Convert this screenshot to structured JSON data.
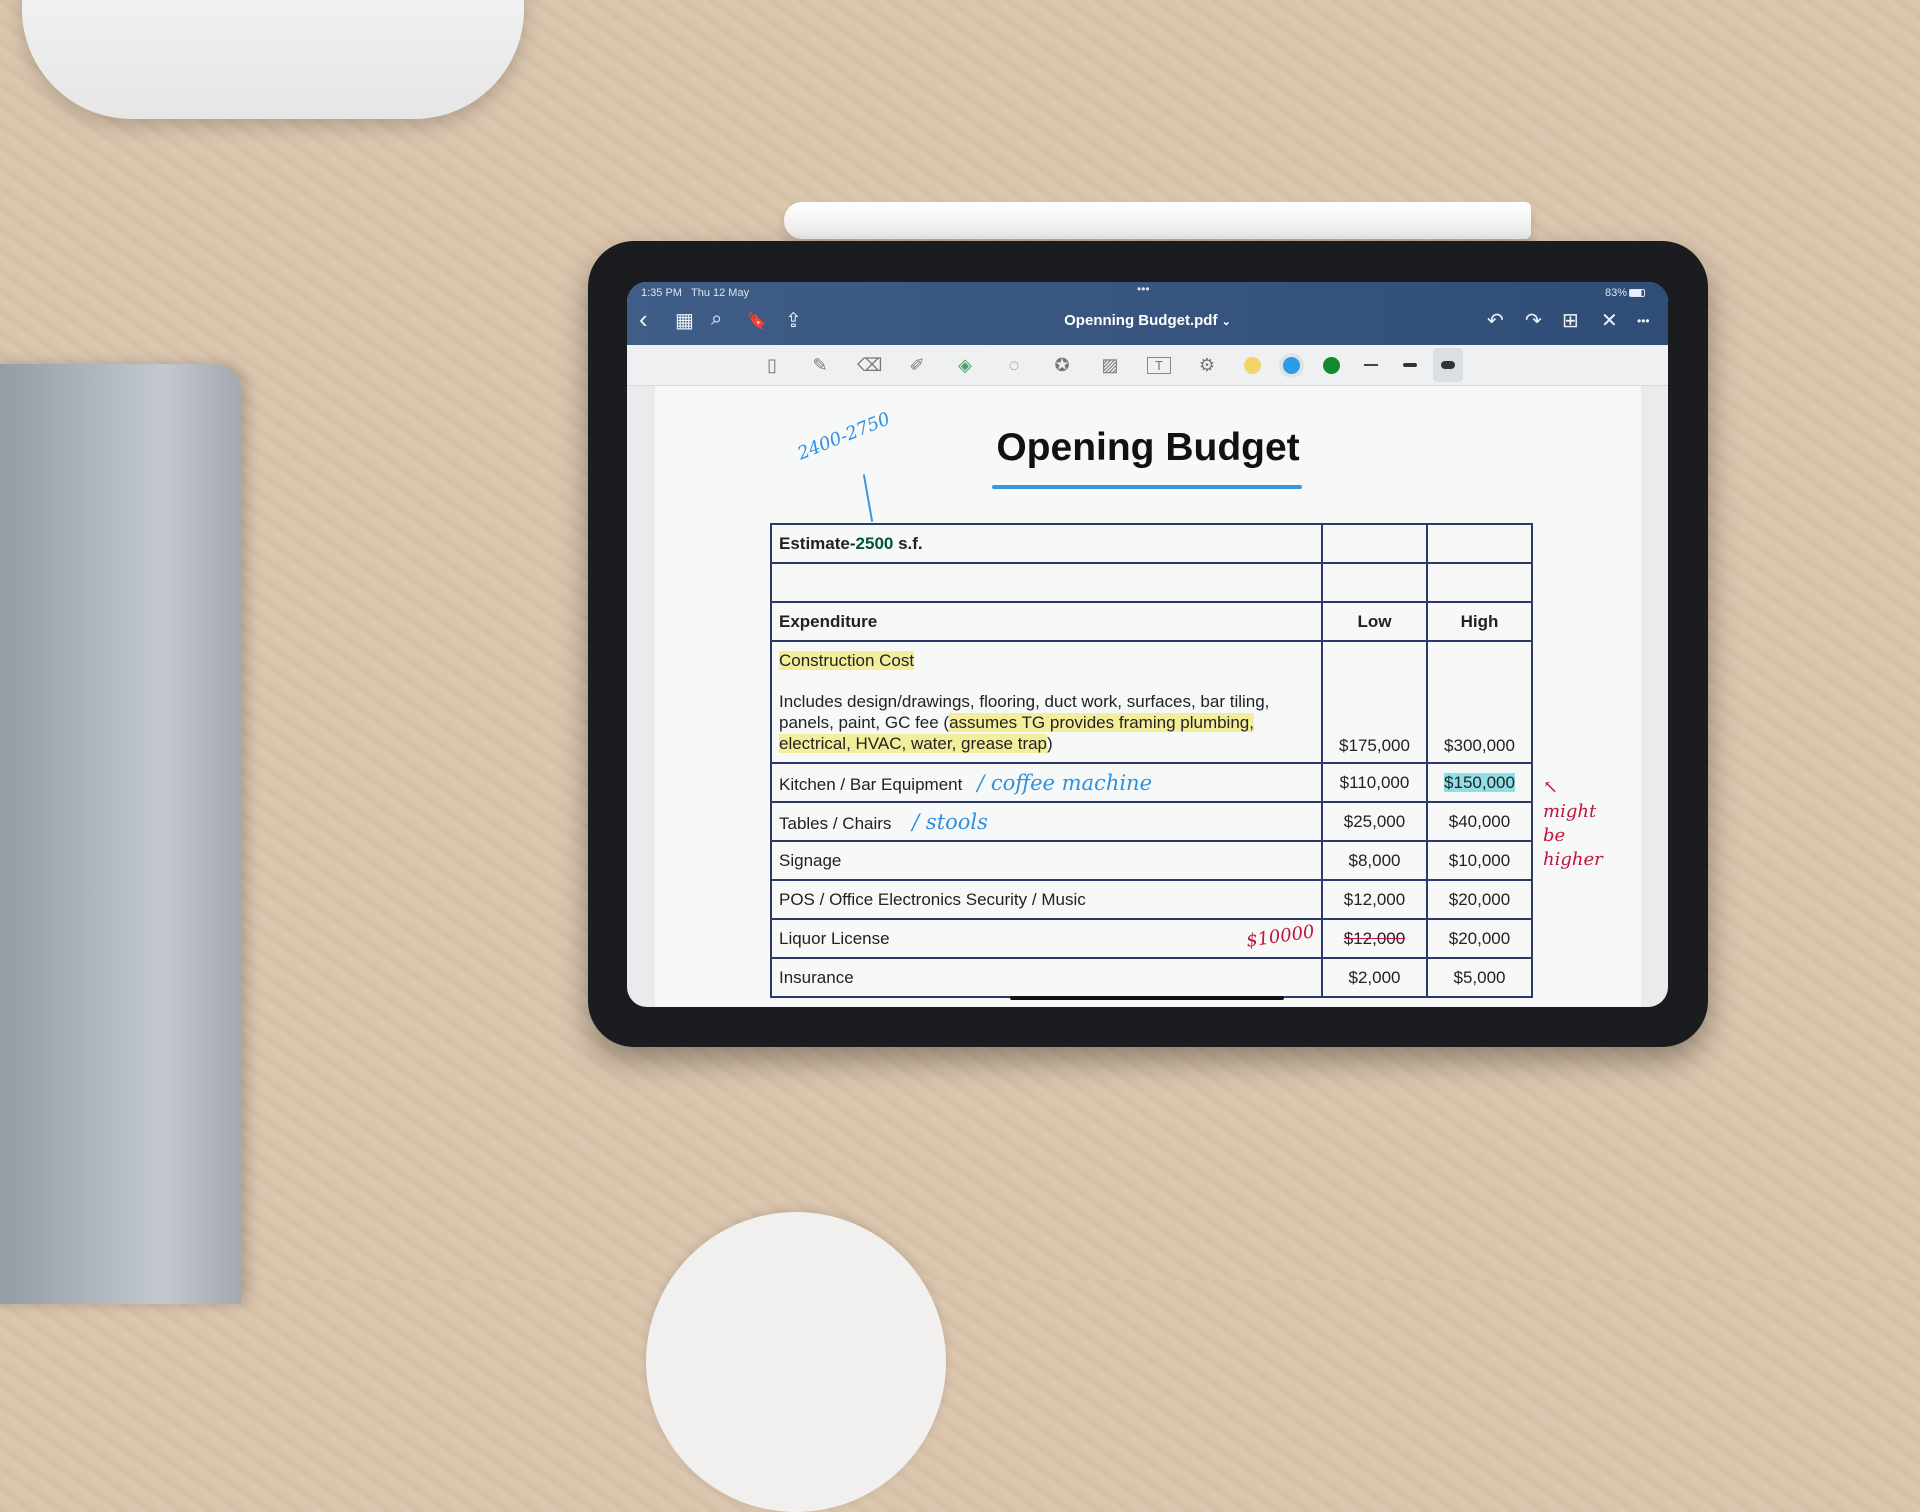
{
  "status_bar": {
    "time": "1:35 PM",
    "date": "Thu 12 May",
    "wifi": "wifi-icon",
    "battery": "83%",
    "multitask": "•••"
  },
  "nav": {
    "title": "Openning Budget.pdf",
    "title_chevron": "⌄",
    "back": "‹",
    "grid": "▦",
    "search": "⌕",
    "bookmark": "🔖",
    "share": "⇪",
    "undo": "↶",
    "redo": "↷",
    "add_page": "⊞",
    "close": "✕",
    "more": "•••"
  },
  "tools": [
    "▯",
    "✎",
    "⌫",
    "✐",
    "◈",
    "◌",
    "✪",
    "▨",
    "T",
    "⚙"
  ],
  "colors": {
    "yellow": "#f1d56a",
    "blue": "#2d9be8",
    "green": "#13892e",
    "accent": "#3f5d86"
  },
  "document": {
    "title": "Opening Budget",
    "estimate_prefix": "Estimate-",
    "estimate_value": "2500",
    "estimate_suffix": " s.f.",
    "headers": {
      "expenditure": "Expenditure",
      "low": "Low",
      "high": "High"
    },
    "construction": {
      "label": "Construction Cost",
      "desc_plain": "Includes design/drawings, flooring, duct work, surfaces, bar tiling, panels, paint, GC fee (",
      "desc_highlight": "assumes TG provides framing plumbing, electrical, HVAC, water, grease trap",
      "desc_end": ")",
      "low": "$175,000",
      "high": "$300,000"
    },
    "rows": [
      {
        "label": "Kitchen / Bar Equipment",
        "low": "$110,000",
        "high": "$150,000"
      },
      {
        "label": "Tables / Chairs",
        "low": "$25,000",
        "high": "$40,000"
      },
      {
        "label": "Signage",
        "low": "$8,000",
        "high": "$10,000"
      },
      {
        "label": "POS / Office Electronics Security / Music",
        "low": "$12,000",
        "high": "$20,000"
      },
      {
        "label": "Liquor License",
        "low": "$12,000",
        "high": "$20,000"
      },
      {
        "label": "Insurance",
        "low": "$2,000",
        "high": "$5,000"
      }
    ]
  },
  "annotations": {
    "range": "2400-2750",
    "coffee": "/ coffee machine",
    "stools": "/ stools",
    "liquor": "$10000",
    "might": "↖ might be higher"
  }
}
